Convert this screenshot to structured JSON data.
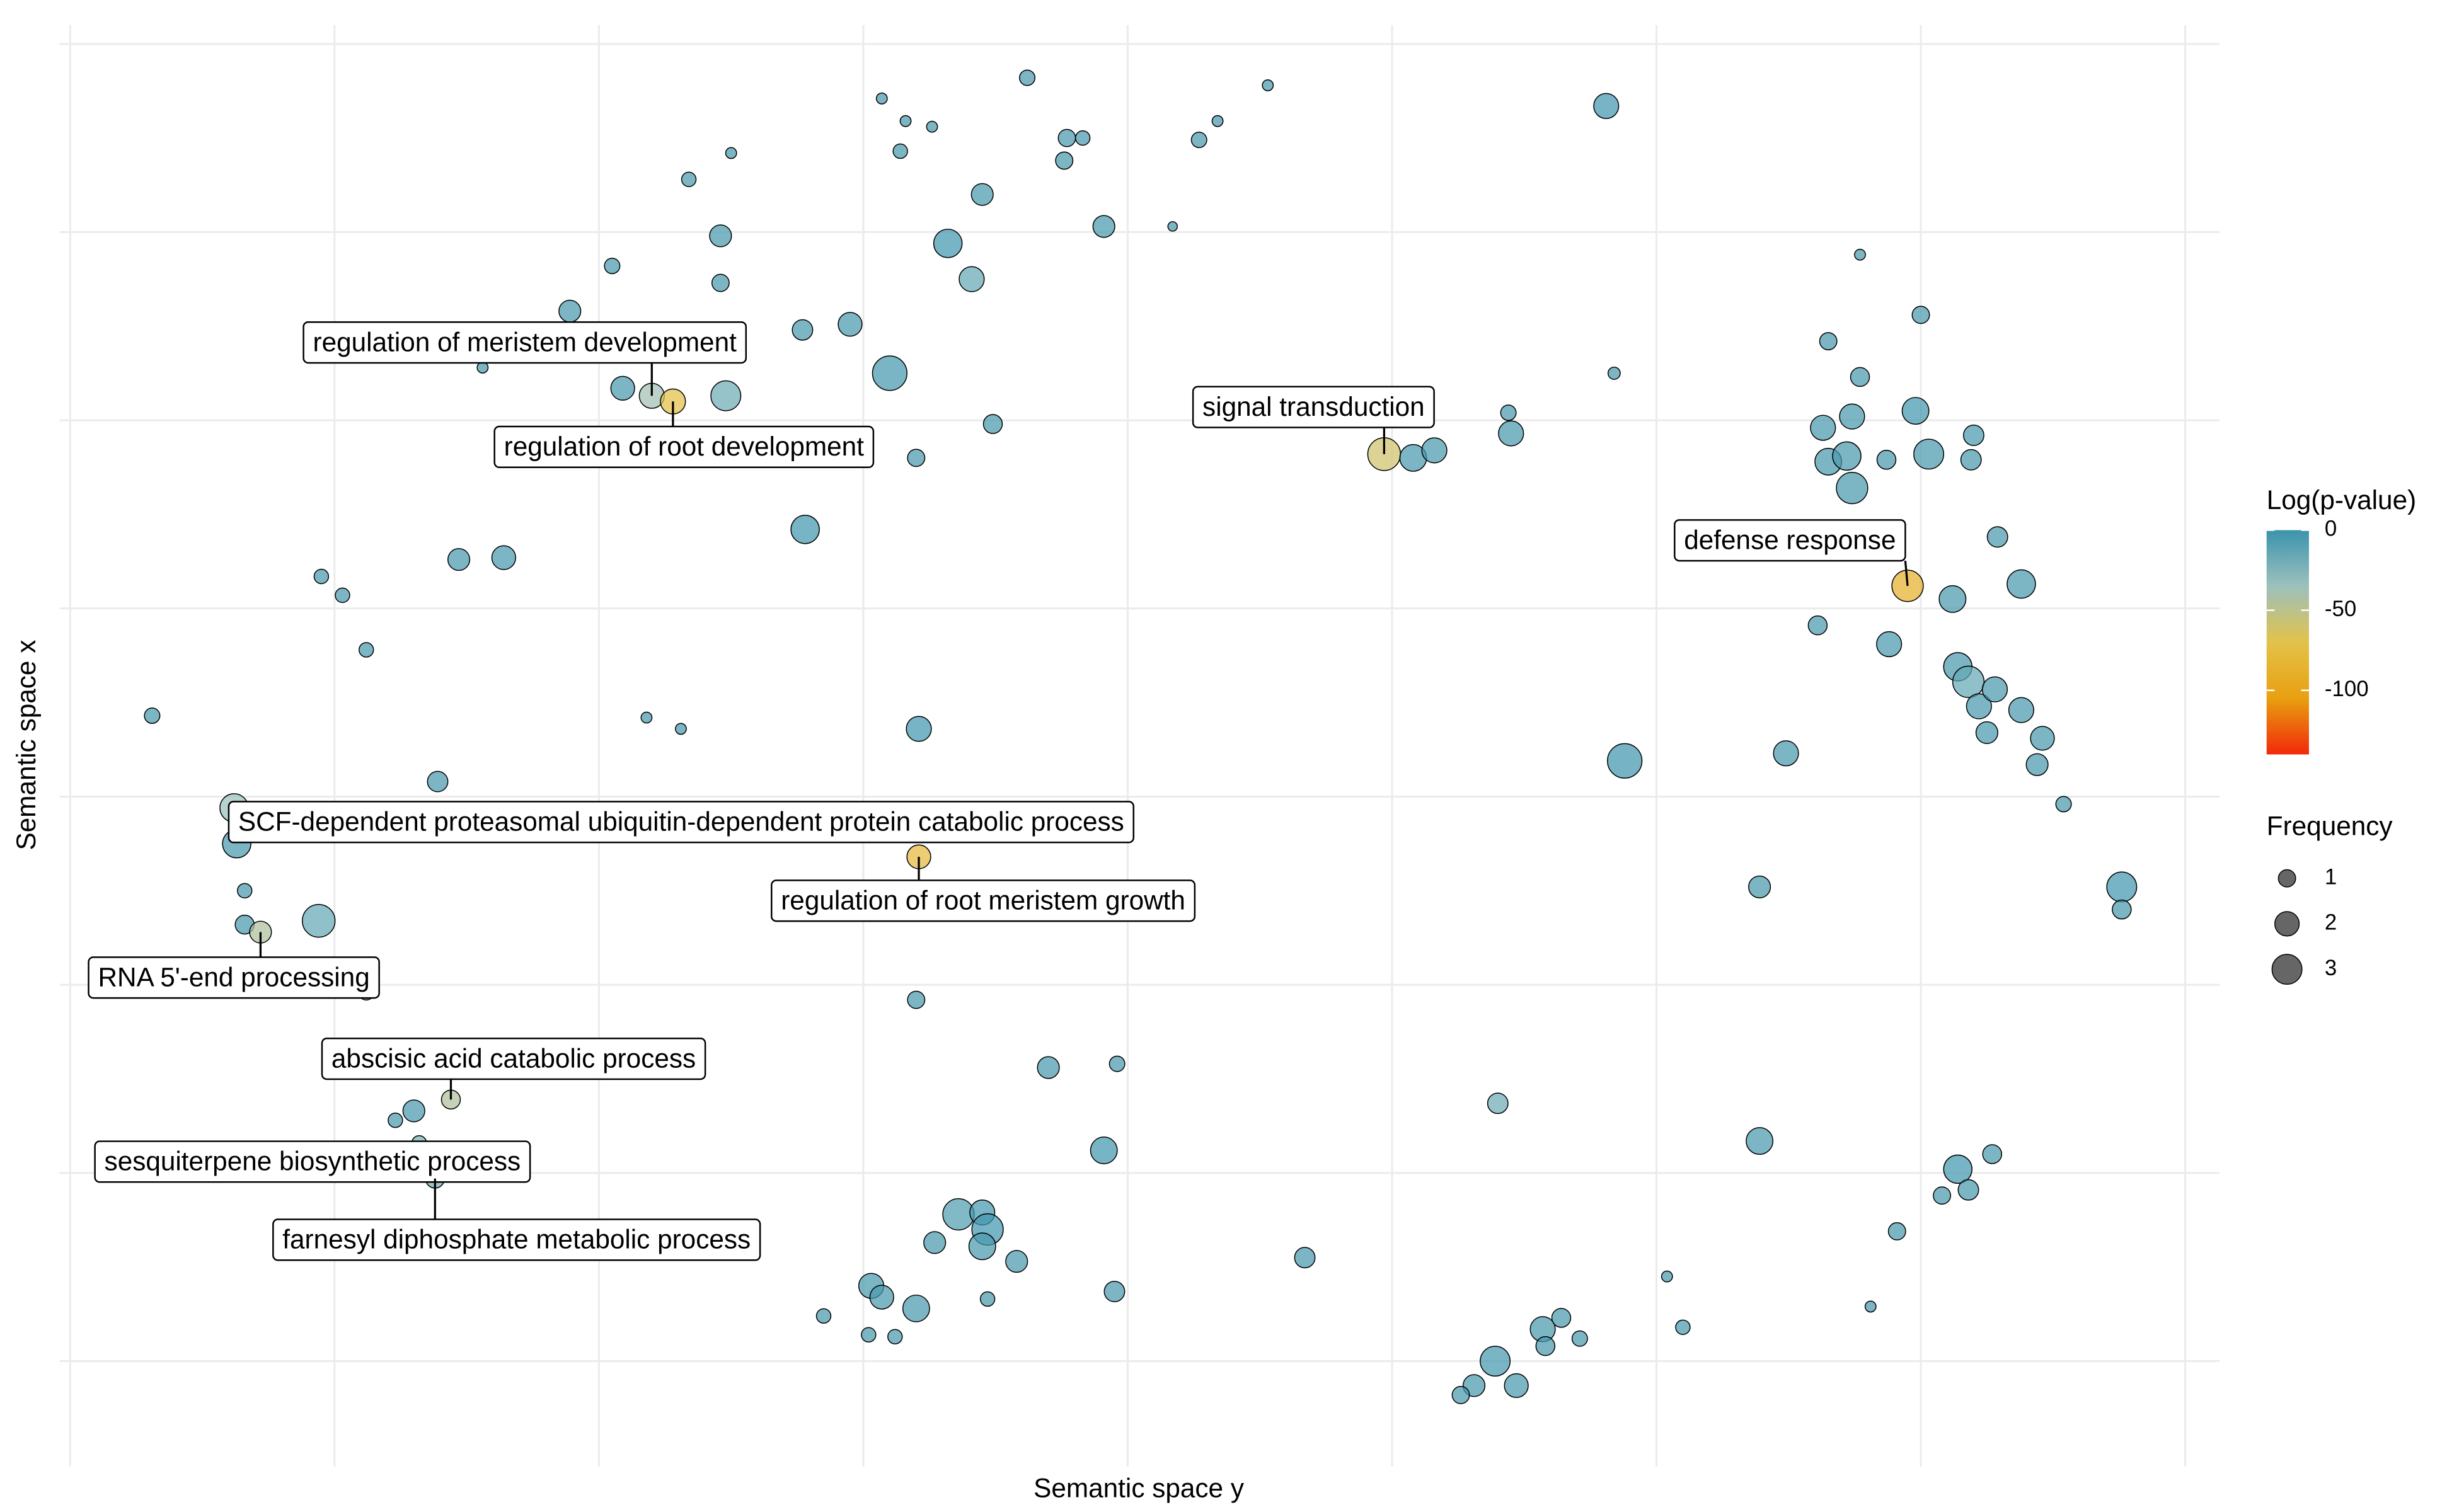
{
  "chart_data": {
    "type": "bubble",
    "xlabel": "Semantic space y",
    "ylabel": "Semantic space x",
    "xlim": [
      -0.04,
      8.13
    ],
    "ylim": [
      -0.56,
      7.1
    ],
    "xticks": [
      0,
      1,
      2,
      3,
      4,
      5,
      6,
      7,
      8
    ],
    "yticks": [
      0,
      1,
      2,
      3,
      4,
      5,
      6,
      7
    ],
    "grid": true,
    "color_title": "Log(p-value)",
    "clim": [
      -140,
      0
    ],
    "cticks": [
      0,
      -50,
      -100
    ],
    "colors": [
      "#3b93ad",
      "#9cc1bd",
      "#e3c24a",
      "#e8a010",
      "#f2290a"
    ],
    "size_title": "Frequency",
    "size_legend": [
      1,
      2,
      3
    ],
    "x": [
      3.62,
      3.07,
      3.16,
      3.26,
      3.14,
      3.77,
      3.83,
      3.76,
      4.34,
      4.53,
      4.27,
      5.81,
      2.5,
      2.34,
      3.45,
      2.46,
      3.32,
      3.91,
      4.17,
      2.05,
      2.46,
      3.41,
      1.89,
      2.77,
      2.95,
      3.1,
      1.56,
      2.09,
      2.2,
      2.28,
      2.48,
      3.49,
      3.2,
      2.78,
      1.47,
      1.64,
      0.95,
      1.03,
      1.12,
      0.31,
      2.18,
      2.31,
      3.21,
      1.39,
      0.62,
      0.63,
      0.66,
      0.66,
      0.72,
      0.94,
      0.87,
      1.12,
      3.21,
      3.2,
      3.7,
      3.96,
      1.44,
      1.3,
      1.23,
      1.32,
      1.38,
      3.91,
      3.36,
      3.45,
      3.47,
      3.45,
      3.27,
      3.58,
      3.03,
      3.07,
      3.2,
      3.47,
      3.95,
      2.85,
      3.02,
      3.12,
      4.67,
      5.4,
      6.77,
      7.0,
      6.65,
      6.77,
      5.84,
      5.44,
      5.45,
      6.63,
      6.74,
      6.98,
      7.2,
      6.65,
      6.72,
      6.87,
      7.03,
      7.19,
      6.74,
      4.97,
      5.08,
      5.16,
      7.29,
      6.95,
      7.12,
      7.38,
      6.61,
      6.88,
      7.14,
      7.18,
      7.22,
      7.28,
      7.38,
      7.25,
      7.46,
      7.44,
      5.88,
      6.49,
      7.54,
      6.39,
      7.76,
      7.76,
      6.39,
      7.14,
      7.27,
      7.08,
      7.18,
      6.91,
      6.04,
      6.81,
      6.1,
      5.64,
      5.57,
      5.71,
      5.58,
      5.39,
      5.31,
      5.47,
      5.26
    ],
    "y": [
      6.82,
      6.71,
      6.59,
      6.56,
      6.43,
      6.5,
      6.5,
      6.38,
      6.59,
      6.78,
      6.49,
      6.67,
      6.42,
      6.28,
      6.2,
      5.98,
      5.94,
      6.03,
      6.03,
      5.82,
      5.73,
      5.75,
      5.58,
      5.48,
      5.51,
      5.25,
      5.28,
      5.17,
      5.13,
      5.1,
      5.13,
      4.98,
      4.8,
      4.42,
      4.26,
      4.27,
      4.17,
      4.07,
      3.78,
      3.43,
      3.42,
      3.36,
      3.36,
      3.08,
      2.94,
      2.75,
      2.5,
      2.32,
      2.28,
      2.34,
      1.98,
      1.96,
      2.68,
      1.92,
      1.56,
      1.58,
      1.39,
      1.33,
      1.28,
      1.16,
      0.97,
      1.12,
      0.78,
      0.79,
      0.7,
      0.61,
      0.63,
      0.53,
      0.4,
      0.34,
      0.28,
      0.33,
      0.37,
      0.24,
      0.14,
      0.13,
      0.55,
      1.37,
      5.88,
      5.56,
      5.42,
      5.23,
      5.25,
      5.04,
      4.93,
      4.96,
      5.02,
      5.05,
      4.92,
      4.78,
      4.81,
      4.79,
      4.82,
      4.79,
      4.64,
      4.82,
      4.8,
      4.84,
      4.38,
      4.12,
      4.05,
      4.13,
      3.91,
      3.81,
      3.69,
      3.61,
      3.48,
      3.57,
      3.46,
      3.34,
      3.31,
      3.17,
      3.19,
      3.23,
      2.96,
      2.52,
      2.52,
      2.4,
      1.17,
      1.02,
      1.1,
      0.88,
      0.91,
      0.69,
      0.45,
      0.29,
      0.18,
      0.23,
      0.17,
      0.12,
      0.08,
      0.0,
      -0.13,
      -0.13,
      -0.18
    ],
    "size": [
      0.8,
      0.4,
      0.4,
      0.4,
      0.7,
      1.0,
      0.7,
      1.0,
      0.4,
      0.4,
      0.8,
      2.1,
      0.4,
      0.7,
      1.6,
      1.6,
      2.7,
      1.6,
      0.3,
      0.8,
      1.0,
      2.1,
      1.6,
      1.4,
      1.9,
      4.0,
      0.4,
      1.9,
      2.1,
      2.1,
      3.0,
      1.2,
      1.0,
      2.7,
      1.6,
      1.9,
      0.7,
      0.7,
      0.7,
      0.8,
      0.4,
      0.4,
      2.1,
      1.4,
      2.7,
      2.7,
      0.7,
      1.2,
      1.6,
      3.6,
      0.8,
      0.8,
      1.9,
      1.0,
      1.6,
      0.8,
      1.2,
      1.6,
      0.7,
      0.7,
      1.2,
      2.4,
      3.3,
      2.1,
      3.3,
      2.4,
      1.6,
      1.6,
      2.1,
      1.9,
      2.4,
      0.7,
      1.4,
      0.7,
      0.7,
      0.7,
      1.4,
      1.4,
      0.4,
      1.0,
      1.0,
      1.2,
      0.5,
      0.8,
      2.1,
      2.1,
      2.1,
      2.4,
      1.4,
      2.4,
      2.7,
      1.2,
      3.0,
      1.4,
      3.3,
      3.6,
      2.4,
      2.1,
      1.4,
      3.3,
      2.4,
      2.7,
      1.2,
      2.1,
      2.7,
      3.3,
      2.1,
      2.1,
      2.1,
      1.6,
      1.9,
      1.6,
      4.0,
      2.1,
      0.8,
      1.6,
      3.0,
      1.2,
      2.4,
      2.7,
      1.2,
      1.0,
      1.4,
      1.0,
      0.4,
      0.4,
      0.7,
      1.2,
      2.1,
      0.8,
      1.2,
      3.0,
      1.6,
      1.9,
      1.0
    ],
    "logp": [
      -5,
      -5,
      -5,
      -5,
      -5,
      -5,
      -5,
      -5,
      -5,
      -5,
      -5,
      -3,
      -5,
      -5,
      -5,
      -5,
      -3,
      -5,
      -5,
      -5,
      -5,
      -15,
      -5,
      -5,
      -5,
      -4,
      -5,
      -5,
      -38,
      -72,
      -18,
      -5,
      -5,
      -3,
      -5,
      -5,
      -5,
      -5,
      -5,
      -5,
      -5,
      -5,
      -3,
      -5,
      -35,
      -5,
      -5,
      -5,
      -45,
      -15,
      -5,
      -5,
      -78,
      -5,
      -5,
      -5,
      -45,
      -5,
      -5,
      -22,
      -22,
      -3,
      -8,
      -4,
      -3,
      -5,
      -5,
      -5,
      -5,
      -5,
      -5,
      -5,
      -5,
      -5,
      -5,
      -5,
      -5,
      -18,
      -5,
      -5,
      -5,
      -5,
      -5,
      -5,
      -5,
      -5,
      -5,
      -3,
      -5,
      -5,
      -5,
      -5,
      -5,
      -5,
      -5,
      -60,
      -5,
      -5,
      -5,
      -88,
      -5,
      -5,
      -5,
      -5,
      -5,
      -15,
      -5,
      -5,
      -5,
      -5,
      -5,
      -5,
      -2,
      -5,
      -5,
      -5,
      -3,
      -5,
      -5,
      -3,
      -5,
      -5,
      -5,
      -5,
      -5,
      -5,
      -5,
      -5,
      -5,
      -5,
      -5,
      -4,
      -5,
      -5,
      -5
    ],
    "labels": [
      null,
      null,
      null,
      null,
      null,
      null,
      null,
      null,
      null,
      null,
      null,
      null,
      null,
      null,
      null,
      null,
      null,
      null,
      null,
      null,
      null,
      null,
      null,
      null,
      null,
      null,
      null,
      null,
      "regulation of meristem development",
      "regulation of root development",
      null,
      null,
      null,
      null,
      null,
      null,
      null,
      null,
      null,
      null,
      null,
      null,
      null,
      null,
      "SCF-dependent proteasomal ubiquitin-dependent protein catabolic process",
      null,
      null,
      null,
      "RNA 5'-end processing",
      null,
      null,
      null,
      "regulation of root meristem growth",
      null,
      null,
      null,
      "abscisic acid catabolic process",
      null,
      null,
      "sesquiterpene biosynthetic process",
      "farnesyl diphosphate metabolic process",
      null,
      null,
      null,
      null,
      null,
      null,
      null,
      null,
      null,
      null,
      null,
      null,
      null,
      null,
      null,
      null,
      null,
      null,
      null,
      null,
      null,
      null,
      null,
      null,
      null,
      null,
      null,
      null,
      null,
      null,
      null,
      null,
      null,
      null,
      "signal transduction",
      null,
      null,
      null,
      "defense response",
      null,
      null,
      null,
      null,
      null,
      null,
      null,
      null,
      null,
      null,
      null,
      null,
      null,
      null,
      null,
      null,
      null,
      null,
      null,
      null,
      null,
      null,
      null,
      null,
      null,
      null,
      null,
      null,
      null,
      null,
      null,
      null,
      null,
      null,
      null
    ]
  }
}
